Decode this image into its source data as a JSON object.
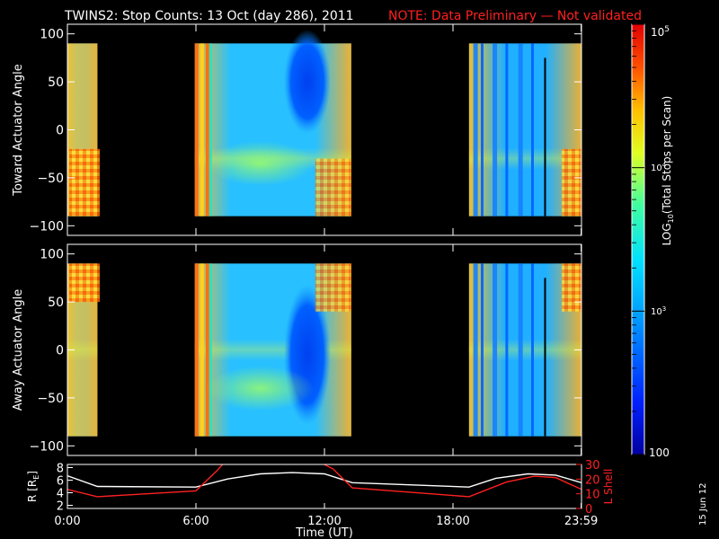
{
  "header": {
    "title": "TWINS2: Stop Counts: 13 Oct (day 286), 2011",
    "note": "NOTE: Data Preliminary — Not validated"
  },
  "colors": {
    "note": "#ff2020",
    "lshell": "#ff2020",
    "background": "#000000"
  },
  "stamp": "15 Jun 12",
  "chart_data": [
    {
      "type": "heatmap",
      "ylabel": "Toward Actuator Angle",
      "ylim": [
        -110,
        110
      ],
      "yticks": [
        -100,
        -50,
        0,
        50,
        100
      ],
      "xlim": [
        0,
        24
      ],
      "data_segments_ut": [
        [
          0.0,
          1.4
        ],
        [
          5.95,
          13.25
        ],
        [
          18.75,
          24.0
        ]
      ]
    },
    {
      "type": "heatmap",
      "ylabel": "Away Actuator Angle",
      "ylim": [
        -110,
        110
      ],
      "yticks": [
        -100,
        -50,
        0,
        50,
        100
      ],
      "xlim": [
        0,
        24
      ],
      "data_segments_ut": [
        [
          0.0,
          1.4
        ],
        [
          5.95,
          13.25
        ],
        [
          18.75,
          24.0
        ]
      ]
    },
    {
      "type": "line",
      "xlabel": "Time (UT)",
      "xlim": [
        0,
        24
      ],
      "xticks": [
        "0:00",
        "6:00",
        "12:00",
        "18:00",
        "23:59"
      ],
      "xtick_values": [
        0,
        6,
        12,
        18,
        23.983
      ],
      "left_axis": {
        "label": "R [R",
        "label_sub": "E",
        "label_end": "]",
        "ylim": [
          1.5,
          8.5
        ],
        "yticks": [
          2,
          4,
          6,
          8
        ]
      },
      "right_axis": {
        "label": "L Shell",
        "ylim": [
          0,
          30
        ],
        "yticks": [
          0,
          10,
          20,
          30
        ]
      },
      "series": [
        {
          "axis": "left",
          "color": "#ffffff",
          "x": [
            0,
            1.4,
            6.0,
            7.5,
            9.0,
            10.5,
            12.0,
            13.3,
            18.75,
            20.0,
            21.5,
            22.8,
            24.0
          ],
          "y": [
            6.7,
            5.0,
            4.9,
            6.2,
            7.0,
            7.2,
            7.0,
            5.6,
            4.9,
            6.3,
            7.0,
            6.8,
            5.6
          ]
        },
        {
          "axis": "right",
          "color": "#ff2020",
          "x": [
            0,
            1.4,
            6.0,
            7.0,
            7.3,
            11.85,
            12.4,
            13.3,
            18.75,
            20.5,
            21.8,
            22.8,
            24.0
          ],
          "y": [
            13,
            8,
            12,
            26,
            31,
            31,
            27,
            14,
            8,
            18,
            22,
            21,
            13
          ]
        }
      ]
    }
  ],
  "colorbar": {
    "label": "LOG",
    "label_sub": "10",
    "label_end": "(Total Stops per Scan)",
    "scale": "log",
    "range": [
      100,
      100000
    ],
    "tick_top": "10",
    "tick_top_exp": "5",
    "tick_mid": "10",
    "tick_mid_exp": "4",
    "tick_low": "10",
    "tick_low_exp": "3",
    "tick_bottom": "100"
  }
}
